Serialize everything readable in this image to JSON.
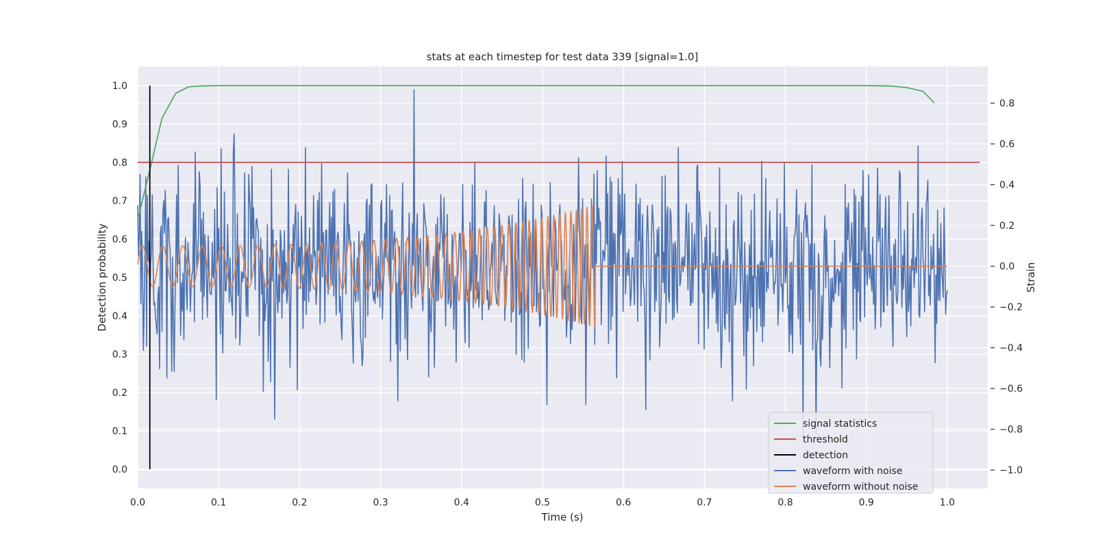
{
  "chart_data": {
    "type": "line",
    "title": "stats at each timestep for test data 339 [signal=1.0]",
    "xlabel": "Time (s)",
    "ylabel": "Detection probability",
    "y2label": "Strain",
    "xlim": [
      0.0,
      1.05
    ],
    "ylim": [
      -0.05,
      1.05
    ],
    "y2lim": [
      -1.09,
      0.98
    ],
    "xticks": [
      0.0,
      0.1,
      0.2,
      0.3,
      0.4,
      0.5,
      0.6,
      0.7,
      0.8,
      0.9,
      1.0
    ],
    "xtick_labels": [
      "0.0",
      "0.1",
      "0.2",
      "0.3",
      "0.4",
      "0.5",
      "0.6",
      "0.7",
      "0.8",
      "0.9",
      "1.0"
    ],
    "yticks": [
      0.0,
      0.1,
      0.2,
      0.3,
      0.4,
      0.5,
      0.6,
      0.7,
      0.8,
      0.9,
      1.0
    ],
    "ytick_labels": [
      "0.0",
      "0.1",
      "0.2",
      "0.3",
      "0.4",
      "0.5",
      "0.6",
      "0.7",
      "0.8",
      "0.9",
      "1.0"
    ],
    "y2ticks": [
      -1.0,
      -0.8,
      -0.6,
      -0.4,
      -0.2,
      0.0,
      0.2,
      0.4,
      0.6,
      0.8
    ],
    "y2tick_labels": [
      "−1.0",
      "−0.8",
      "−0.6",
      "−0.4",
      "−0.2",
      "0.0",
      "0.2",
      "0.4",
      "0.6",
      "0.8"
    ],
    "grid": true,
    "legend_position": "lower-right",
    "series": [
      {
        "name": "signal statistics",
        "color": "#55a868",
        "axis": "left",
        "x": [
          0.0,
          0.015,
          0.03,
          0.047,
          0.063,
          0.078,
          0.1,
          0.2,
          0.3,
          0.4,
          0.5,
          0.6,
          0.7,
          0.8,
          0.9,
          0.93,
          0.95,
          0.97,
          0.984
        ],
        "y": [
          0.65,
          0.78,
          0.915,
          0.98,
          0.997,
          0.999,
          1.0,
          1.0,
          1.0,
          1.0,
          1.0,
          1.0,
          1.0,
          1.0,
          1.0,
          0.999,
          0.995,
          0.985,
          0.955
        ]
      },
      {
        "name": "threshold",
        "color": "#c44e52",
        "axis": "left",
        "x": [
          0.0,
          1.04
        ],
        "y": [
          0.8,
          0.8
        ]
      },
      {
        "name": "detection",
        "color": "#000000",
        "axis": "left",
        "x": [
          0.015,
          0.015
        ],
        "y": [
          0.0,
          1.0
        ]
      },
      {
        "name": "waveform with noise",
        "color": "#4c72b0",
        "axis": "right",
        "generated": "noisy strain, approx. 1000 samples on [0,1], std ~0.25, range -1.0 to 0.9",
        "n": 1000,
        "std": 0.25,
        "min": -1.0,
        "max": 0.92
      },
      {
        "name": "waveform without noise",
        "color": "#dd8452",
        "axis": "right",
        "generated": "chirp from 0 to 0.565 s, amplitude 0.1 rising to 0.3, flat 0 afterwards",
        "t_end": 0.565,
        "amp_start": 0.1,
        "amp_end": 0.3
      }
    ]
  }
}
